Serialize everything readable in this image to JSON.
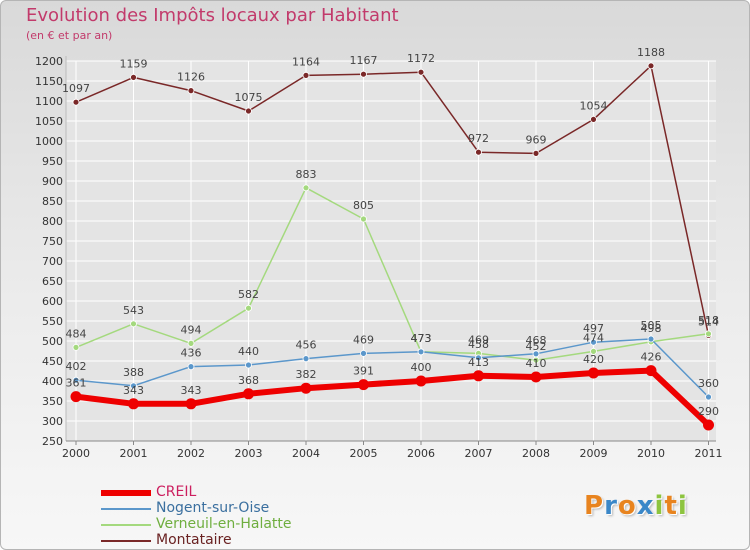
{
  "header": {
    "title": "Evolution des Impôts locaux par Habitant",
    "subtitle": "(en € et par an)"
  },
  "brand": {
    "name": "Proxiti",
    "letters": [
      "P",
      "r",
      "o",
      "x",
      "i",
      "t",
      "i"
    ],
    "letter_colors": [
      "#e8841f",
      "#3a87c8",
      "#e8841f",
      "#3a87c8",
      "#8dc43f",
      "#e8841f",
      "#8dc43f"
    ]
  },
  "colors": {
    "axis_text": "#333333",
    "grid": "#ffffff",
    "label": "#444444"
  },
  "chart_data": {
    "type": "line",
    "title": "Evolution des Impôts locaux par Habitant",
    "subtitle": "(en € et par an)",
    "x": [
      "2000",
      "2001",
      "2002",
      "2003",
      "2004",
      "2005",
      "2006",
      "2007",
      "2008",
      "2009",
      "2010",
      "2011"
    ],
    "y_ticks": [
      250,
      300,
      350,
      400,
      450,
      500,
      550,
      600,
      650,
      700,
      750,
      800,
      850,
      900,
      950,
      1000,
      1050,
      1100,
      1150,
      1200
    ],
    "ylim": [
      250,
      1200
    ],
    "grid": true,
    "legend_position": "bottom-left",
    "series": [
      {
        "name": "CREIL",
        "color": "#ee0000",
        "width": 6,
        "values": [
          361,
          343,
          343,
          368,
          382,
          391,
          400,
          413,
          410,
          420,
          426,
          290
        ],
        "labels": [
          "361",
          "343",
          "343",
          "368",
          "382",
          "391",
          "400",
          "413",
          "410",
          "420",
          "426",
          "290"
        ]
      },
      {
        "name": "Nogent-sur-Oise",
        "color": "#5b97cb",
        "width": 1.5,
        "values": [
          402,
          388,
          436,
          440,
          456,
          469,
          473,
          458,
          468,
          497,
          505,
          360
        ],
        "labels": [
          "402",
          "388",
          "436",
          "440",
          "456",
          "469",
          "473",
          "458",
          "468",
          "497",
          "505",
          "360"
        ]
      },
      {
        "name": "Verneuil-en-Halatte",
        "color": "#a4d97e",
        "width": 1.5,
        "values": [
          484,
          543,
          494,
          582,
          883,
          805,
          473,
          469,
          452,
          474,
          498,
          518
        ],
        "labels": [
          "484",
          "543",
          "494",
          "582",
          "883",
          "805",
          "473",
          "469",
          "452",
          "474",
          "498",
          "518"
        ]
      },
      {
        "name": "Montataire",
        "color": "#7a2828",
        "width": 1.5,
        "values": [
          1097,
          1159,
          1126,
          1075,
          1164,
          1167,
          1172,
          972,
          969,
          1054,
          1188,
          514
        ],
        "labels": [
          "1097",
          "1159",
          "1126",
          "1075",
          "1164",
          "1167",
          "1172",
          "972",
          "969",
          "1054",
          "1188",
          "514"
        ]
      }
    ]
  }
}
